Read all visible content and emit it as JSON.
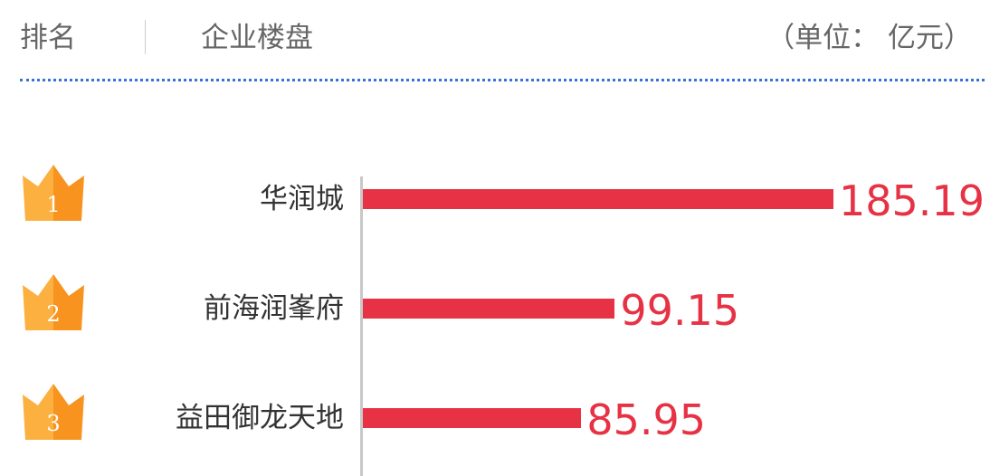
{
  "header": {
    "rank": "排名",
    "project": "企业楼盘",
    "unit": "（单位： 亿元）"
  },
  "colors": {
    "bar": "#e63244",
    "crown_light": "#fbb040",
    "crown_dark": "#f7931e",
    "dots": "#3a6fe0"
  },
  "chart_data": {
    "type": "bar",
    "orientation": "horizontal",
    "categories": [
      "华润城",
      "前海润峯府",
      "益田御龙天地"
    ],
    "ranks": [
      "1",
      "2",
      "3"
    ],
    "values": [
      185.19,
      99.15,
      85.95
    ],
    "value_labels": [
      "185.19",
      "99.15",
      "85.95"
    ],
    "unit": "亿元",
    "xlim": [
      0,
      185.19
    ]
  }
}
